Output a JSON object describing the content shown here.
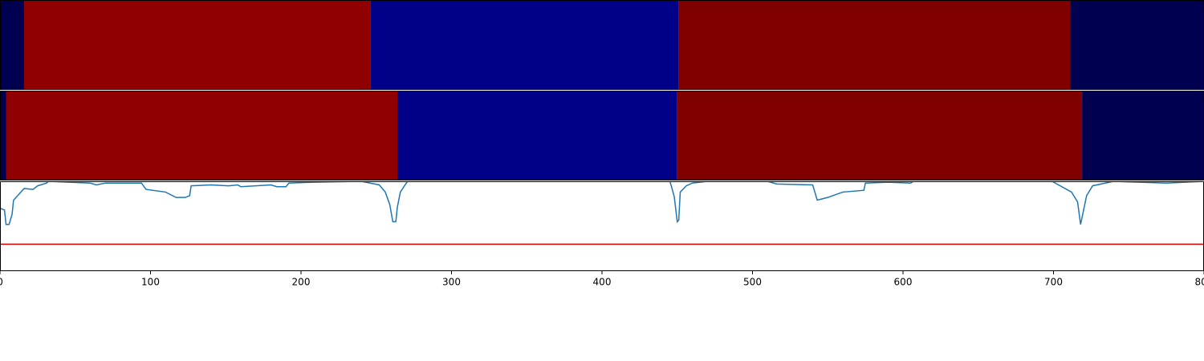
{
  "chart_data": [
    {
      "type": "segments",
      "xlim": [
        0,
        800
      ],
      "rows": [
        {
          "segments": [
            {
              "start": 0,
              "end": 16,
              "color": "#000050"
            },
            {
              "start": 16,
              "end": 246,
              "color": "#900000"
            },
            {
              "start": 246,
              "end": 451,
              "color": "#000088"
            },
            {
              "start": 451,
              "end": 711,
              "color": "#800000"
            },
            {
              "start": 711,
              "end": 800,
              "color": "#000050"
            }
          ]
        },
        {
          "segments": [
            {
              "start": 0,
              "end": 4,
              "color": "#000050"
            },
            {
              "start": 4,
              "end": 264,
              "color": "#900000"
            },
            {
              "start": 264,
              "end": 450,
              "color": "#000088"
            },
            {
              "start": 450,
              "end": 719,
              "color": "#800000"
            },
            {
              "start": 719,
              "end": 800,
              "color": "#000050"
            }
          ]
        }
      ]
    },
    {
      "type": "line",
      "xlim": [
        0,
        800
      ],
      "ylim": [
        0,
        1
      ],
      "xticks": [
        0,
        100,
        200,
        300,
        400,
        500,
        600,
        700,
        800
      ],
      "x": [
        0,
        3,
        4,
        6,
        8,
        9,
        16,
        22,
        25,
        31,
        32,
        60,
        64,
        70,
        94,
        97,
        110,
        117,
        123,
        126,
        127,
        140,
        152,
        158,
        160,
        180,
        184,
        190,
        192,
        208,
        240,
        252,
        256,
        259,
        261,
        263,
        264,
        266,
        270,
        272,
        445,
        448,
        450,
        451,
        452,
        456,
        460,
        470,
        510,
        516,
        540,
        543,
        550,
        560,
        574,
        575,
        590,
        605,
        607,
        690,
        699,
        712,
        716,
        718,
        720,
        722,
        726,
        740,
        775,
        800
      ],
      "series": [
        {
          "color": "#1f77b4",
          "values": [
            0.7,
            0.68,
            0.52,
            0.52,
            0.63,
            0.79,
            0.92,
            0.91,
            0.95,
            0.98,
            1.0,
            0.98,
            0.96,
            0.98,
            0.98,
            0.91,
            0.88,
            0.82,
            0.82,
            0.84,
            0.95,
            0.96,
            0.95,
            0.96,
            0.94,
            0.96,
            0.94,
            0.94,
            0.98,
            0.99,
            1.0,
            0.96,
            0.88,
            0.74,
            0.55,
            0.55,
            0.71,
            0.88,
            0.98,
            1.02,
            1.01,
            0.83,
            0.55,
            0.57,
            0.88,
            0.95,
            0.98,
            1.0,
            1.0,
            0.97,
            0.96,
            0.79,
            0.82,
            0.88,
            0.9,
            0.98,
            0.99,
            0.98,
            1.0,
            1.0,
            1.0,
            0.88,
            0.77,
            0.52,
            0.68,
            0.84,
            0.95,
            1.0,
            0.98,
            1.0
          ]
        }
      ],
      "threshold": 0.3,
      "threshold_color": "#e00000"
    }
  ]
}
